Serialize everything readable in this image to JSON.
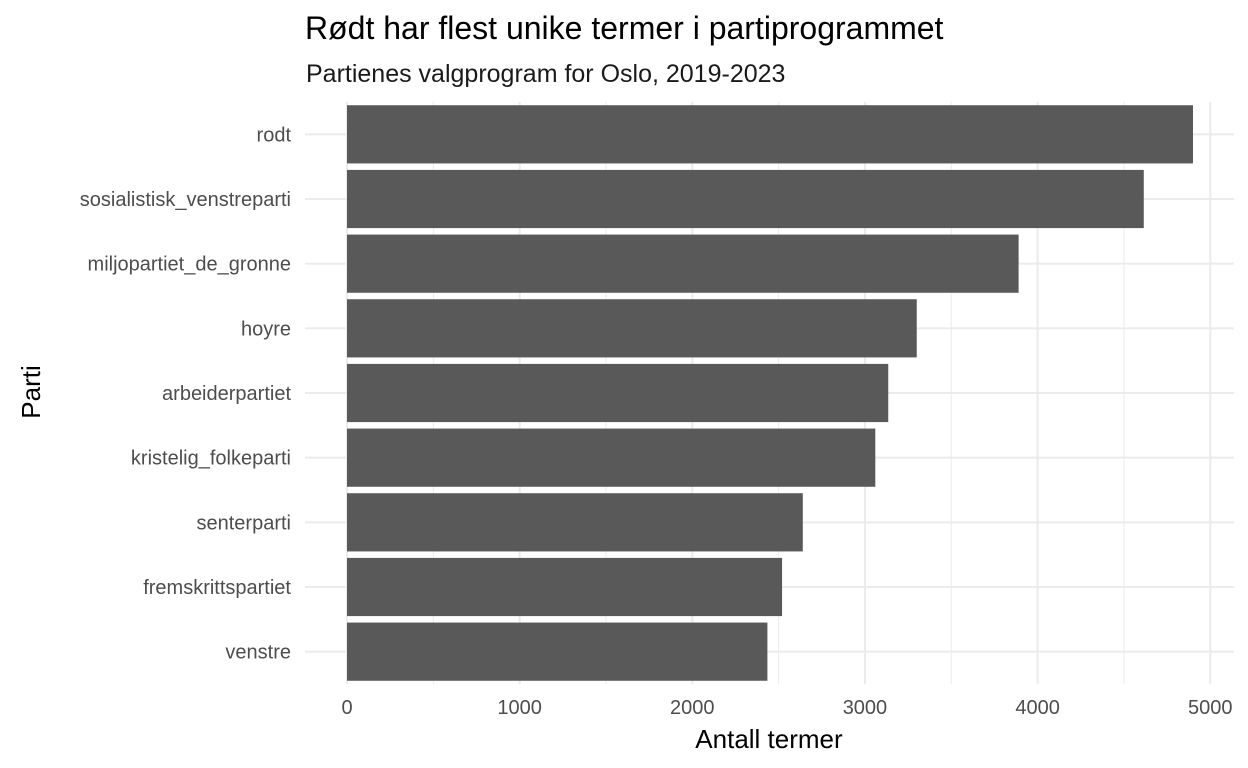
{
  "chart_data": {
    "type": "bar",
    "orientation": "horizontal",
    "title": "Rødt har flest unike termer i partiprogrammet",
    "subtitle": "Partienes valgprogram for Oslo, 2019-2023",
    "xlabel": "Antall termer",
    "ylabel": "Parti",
    "categories": [
      "rodt",
      "sosialistisk_venstreparti",
      "miljopartiet_de_gronne",
      "hoyre",
      "arbeiderpartiet",
      "kristelig_folkeparti",
      "senterparti",
      "fremskrittspartiet",
      "venstre"
    ],
    "values": [
      4900,
      4615,
      3890,
      3300,
      3135,
      3060,
      2640,
      2520,
      2435
    ],
    "xlim": [
      0,
      5200
    ],
    "x_ticks": [
      0,
      1000,
      2000,
      3000,
      4000,
      5000
    ],
    "x_tick_labels": [
      "0",
      "1000",
      "2000",
      "3000",
      "4000",
      "5000"
    ],
    "grid": true,
    "colors": {
      "bar": "#595959",
      "grid": "#ebebeb",
      "background": "#ffffff"
    }
  }
}
